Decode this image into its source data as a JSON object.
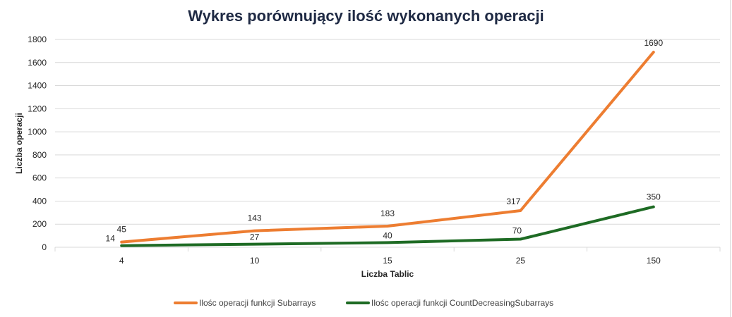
{
  "chart_data": {
    "type": "line",
    "title": "Wykres porównujący ilość wykonanych operacji",
    "xlabel": "Liczba Tablic",
    "ylabel": "Liczba operacji",
    "categories": [
      "4",
      "10",
      "15",
      "25",
      "150"
    ],
    "ylim": [
      0,
      1800
    ],
    "yticks": [
      0,
      200,
      400,
      600,
      800,
      1000,
      1200,
      1400,
      1600,
      1800
    ],
    "grid": true,
    "legend_position": "bottom",
    "series": [
      {
        "name": "Ilośc operacji funkcji Subarrays",
        "values": [
          45,
          143,
          183,
          317,
          1690
        ],
        "color": "#ed7d31",
        "label_position": "above"
      },
      {
        "name": "Ilośc operacji funkcji CountDecreasingSubarrays",
        "values": [
          14,
          27,
          40,
          70,
          350
        ],
        "color": "#1e6b24",
        "label_position": "mixed"
      }
    ]
  }
}
